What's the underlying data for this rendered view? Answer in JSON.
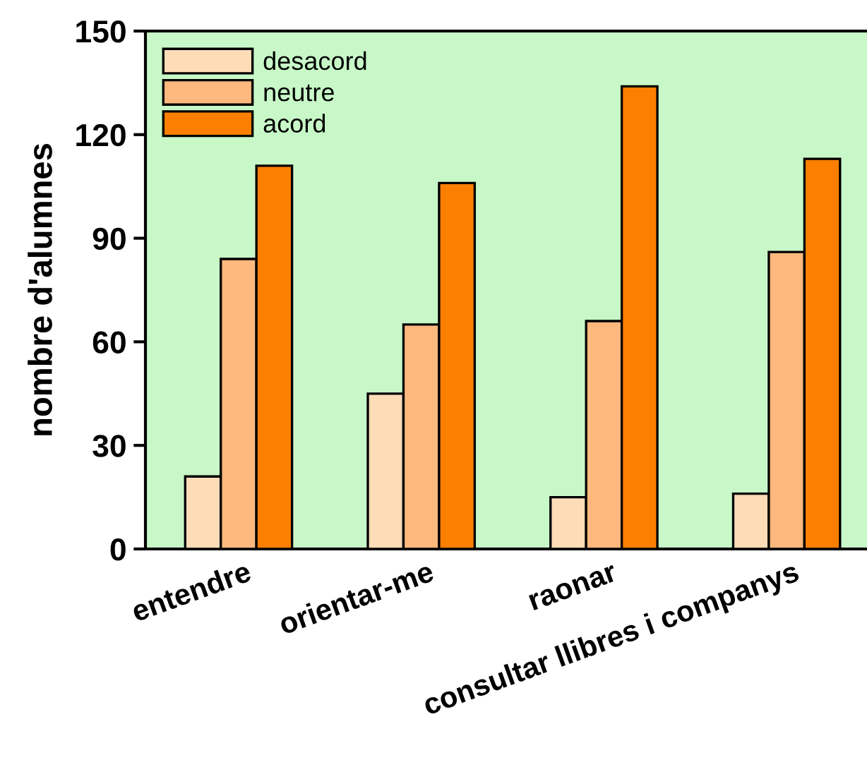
{
  "chart_data": {
    "type": "bar",
    "ylabel": "nombre d'alumnes",
    "categories": [
      "entendre",
      "orientar-me",
      "raonar",
      "consultar llibres i companys"
    ],
    "series": [
      {
        "name": "desacord",
        "color": "#fddcb8",
        "values": [
          21,
          45,
          15,
          16
        ]
      },
      {
        "name": "neutre",
        "color": "#fdb87e",
        "values": [
          84,
          65,
          66,
          86
        ]
      },
      {
        "name": "acord",
        "color": "#fd7f00",
        "values": [
          111,
          106,
          134,
          113
        ]
      }
    ],
    "ylim": [
      0,
      150
    ],
    "yticks": [
      0,
      30,
      60,
      90,
      120,
      150
    ],
    "grid": false,
    "legend": "top left"
  }
}
